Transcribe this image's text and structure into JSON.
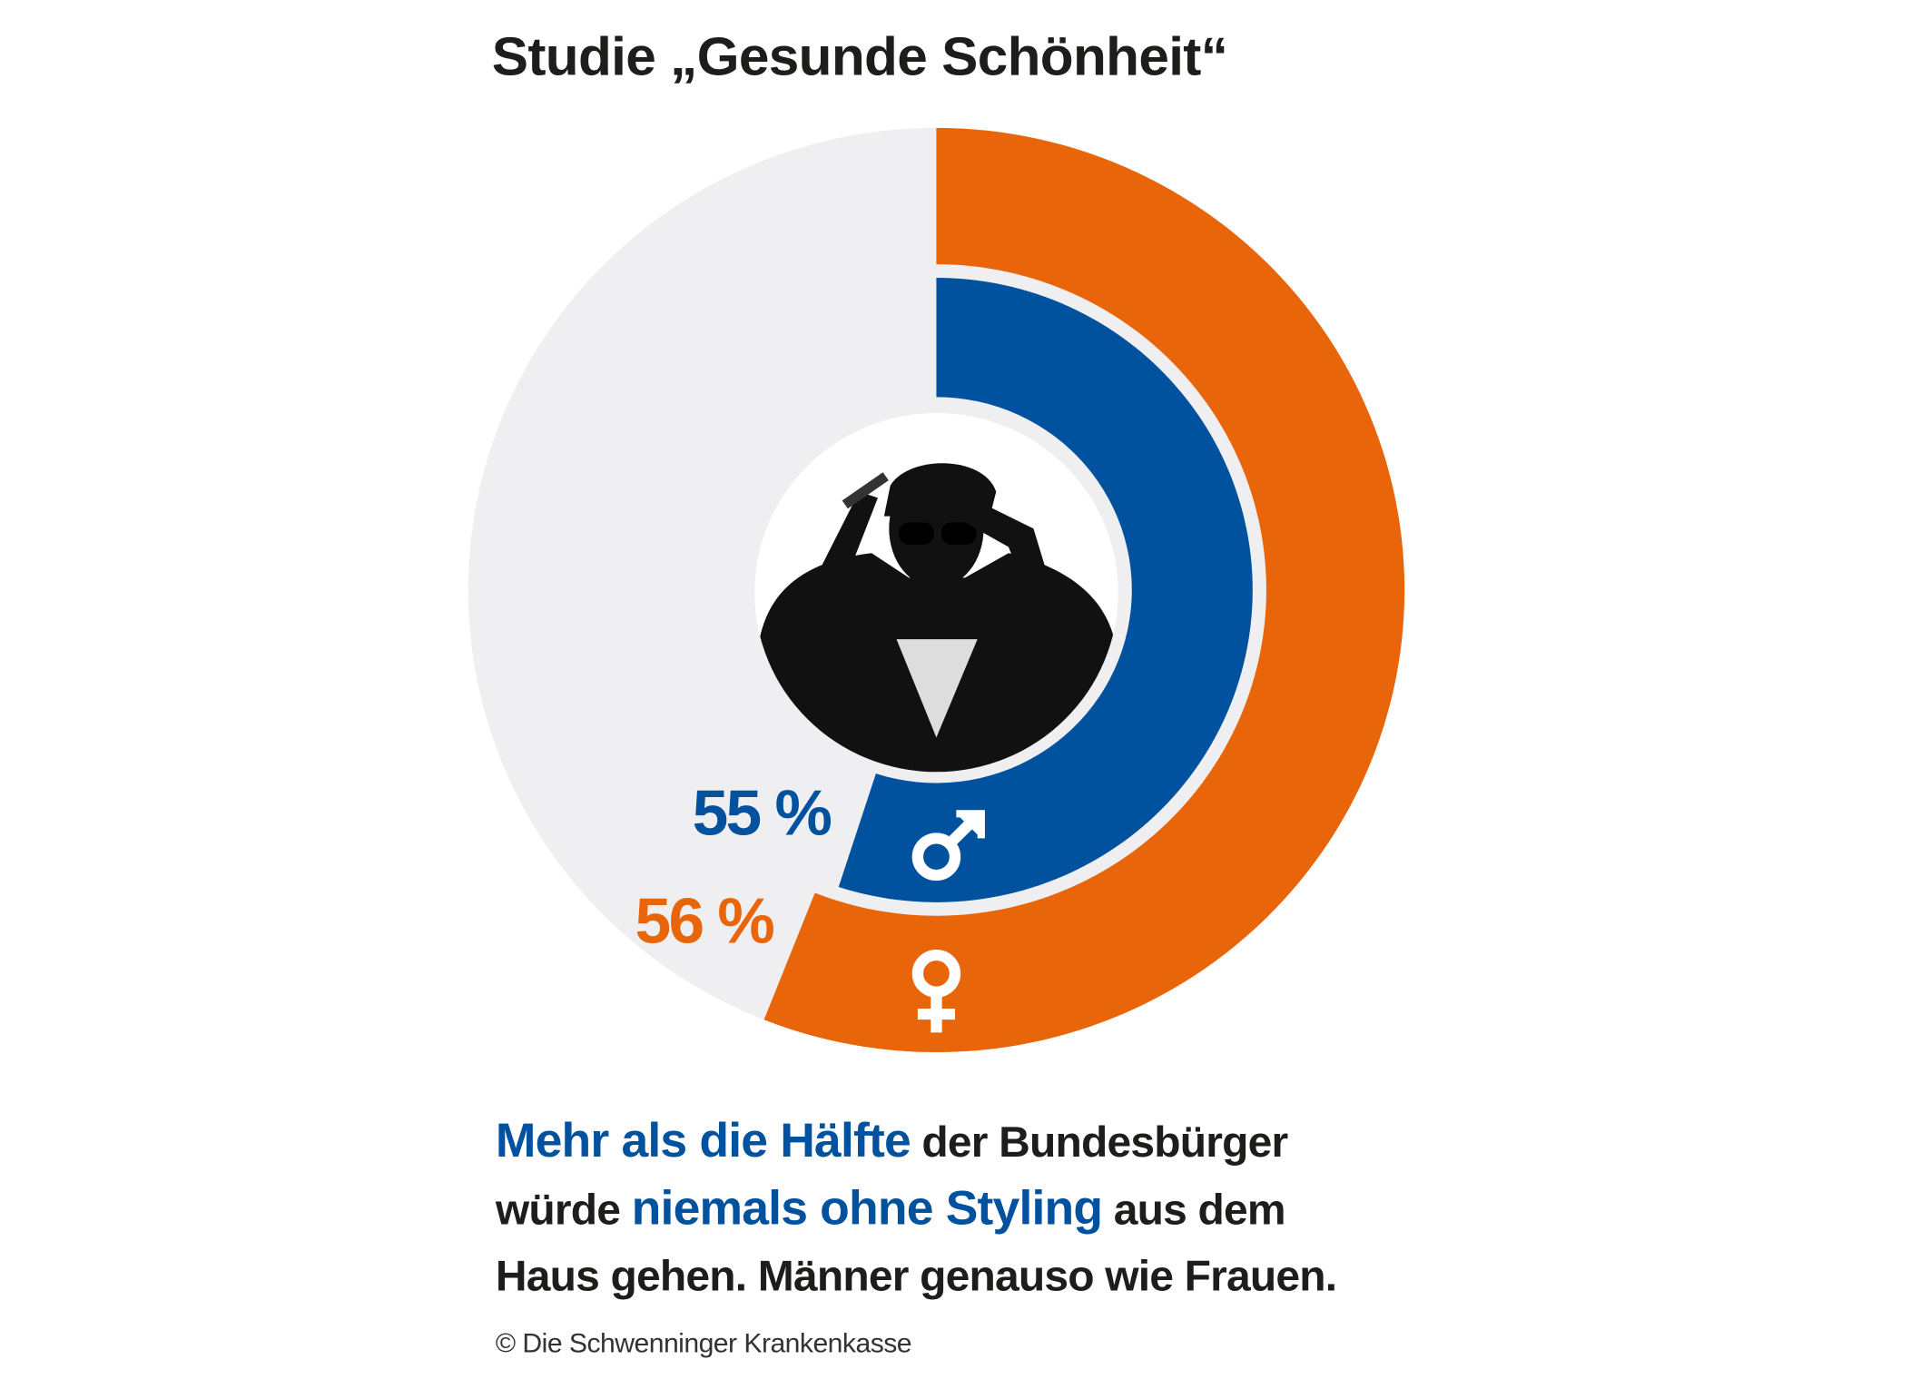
{
  "chart_data": {
    "type": "pie",
    "title": "Studie „Gesunde Schönheit“",
    "series": [
      {
        "name": "Frauen",
        "symbol": "female-symbol",
        "value": 56,
        "label": "56 %",
        "color": "#e8650a"
      },
      {
        "name": "Männer",
        "symbol": "male-symbol",
        "value": 55,
        "label": "55 %",
        "color": "#00519e"
      }
    ],
    "max": 100,
    "background_color": "#efeff1"
  },
  "text": {
    "line1_highlight": "Mehr als die Hälfte",
    "line1_rest": " der Bundesbürger",
    "line2_start": "würde ",
    "line2_highlight": "niemals ohne Styling",
    "line2_rest": " aus dem",
    "line3": "Haus gehen. Männer genauso wie Frauen.",
    "copyright": "© Die Schwenninger Krankenkasse"
  }
}
